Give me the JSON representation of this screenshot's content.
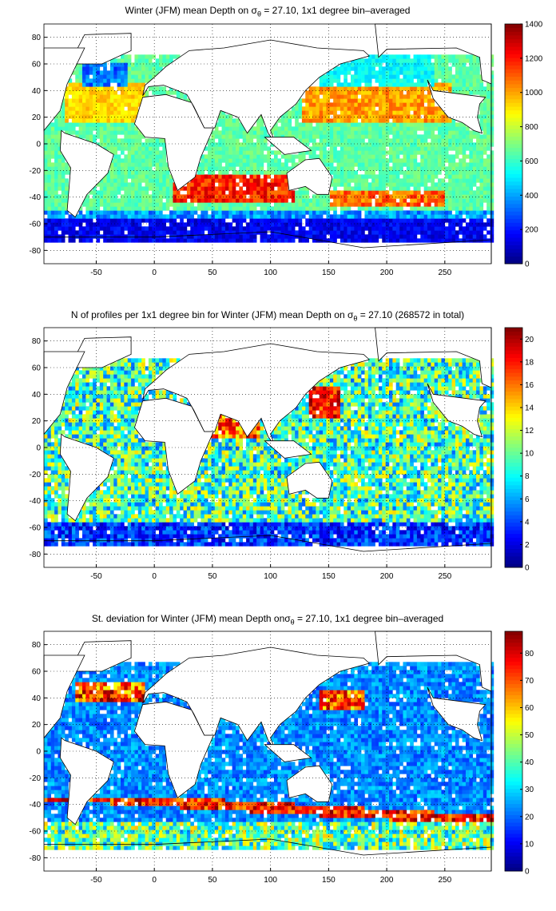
{
  "chart_data": [
    {
      "type": "heatmap",
      "title_before": "Winter (JFM) mean Depth on σ",
      "title_sub": "θ",
      "title_after": " = 27.10, 1x1 degree bin–averaged",
      "xlim": [
        -95,
        290
      ],
      "ylim": [
        -90,
        90
      ],
      "xticks": [
        -50,
        0,
        50,
        100,
        150,
        200,
        250
      ],
      "yticks": [
        -80,
        -60,
        -40,
        -20,
        0,
        20,
        40,
        60,
        80
      ],
      "grid": true,
      "colorbar": {
        "min": 0,
        "max": 1400,
        "ticks": [
          0,
          200,
          400,
          600,
          800,
          1000,
          1200,
          1400
        ],
        "colormap": "jet"
      },
      "field": "depth"
    },
    {
      "type": "heatmap",
      "title_before": "N of profiles per 1x1 degree bin for Winter (JFM) mean Depth on σ",
      "title_sub": "θ",
      "title_after": " = 27.10 (268572 in total)",
      "xlim": [
        -95,
        290
      ],
      "ylim": [
        -90,
        90
      ],
      "xticks": [
        -50,
        0,
        50,
        100,
        150,
        200,
        250
      ],
      "yticks": [
        -80,
        -60,
        -40,
        -20,
        0,
        20,
        40,
        60,
        80
      ],
      "grid": true,
      "colorbar": {
        "min": 0,
        "max": 21,
        "ticks": [
          0,
          2,
          4,
          6,
          8,
          10,
          12,
          14,
          16,
          18,
          20
        ],
        "colormap": "jet"
      },
      "field": "count"
    },
    {
      "type": "heatmap",
      "title_before": "St. deviation for Winter (JFM) mean Depth onσ",
      "title_sub": "θ",
      "title_after": " = 27.10, 1x1 degree bin–averaged",
      "xlim": [
        -95,
        290
      ],
      "ylim": [
        -90,
        90
      ],
      "xticks": [
        -50,
        0,
        50,
        100,
        150,
        200,
        250
      ],
      "yticks": [
        -80,
        -60,
        -40,
        -20,
        0,
        20,
        40,
        60,
        80
      ],
      "grid": true,
      "colorbar": {
        "min": 0,
        "max": 88,
        "ticks": [
          0,
          10,
          20,
          30,
          40,
          50,
          60,
          70,
          80
        ],
        "colormap": "jet"
      },
      "field": "std"
    }
  ]
}
